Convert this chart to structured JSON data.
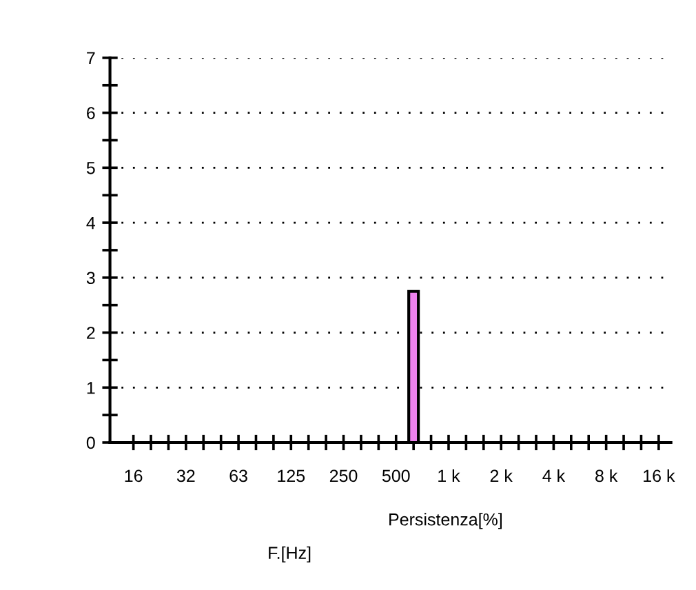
{
  "chart_data": {
    "type": "bar",
    "xlabel": "F.[Hz]",
    "annotations": [
      "Persistenza[%]"
    ],
    "categories": [
      "16",
      null,
      null,
      "32",
      null,
      null,
      "63",
      null,
      null,
      "125",
      null,
      null,
      "250",
      null,
      null,
      "500",
      null,
      null,
      "1 k",
      null,
      null,
      "2 k",
      null,
      null,
      "4 k",
      null,
      null,
      "8 k",
      null,
      null,
      "16 k"
    ],
    "values": [
      null,
      null,
      null,
      null,
      null,
      null,
      null,
      null,
      null,
      null,
      null,
      null,
      null,
      null,
      null,
      null,
      2.75,
      null,
      null,
      null,
      null,
      null,
      null,
      null,
      null,
      null,
      null,
      null,
      null,
      null,
      null
    ],
    "color": "#ee82ee",
    "ylim": [
      0,
      7
    ],
    "yticks": [
      0,
      1,
      2,
      3,
      4,
      5,
      6,
      7
    ],
    "grid": "y",
    "line_style": "dotted"
  }
}
